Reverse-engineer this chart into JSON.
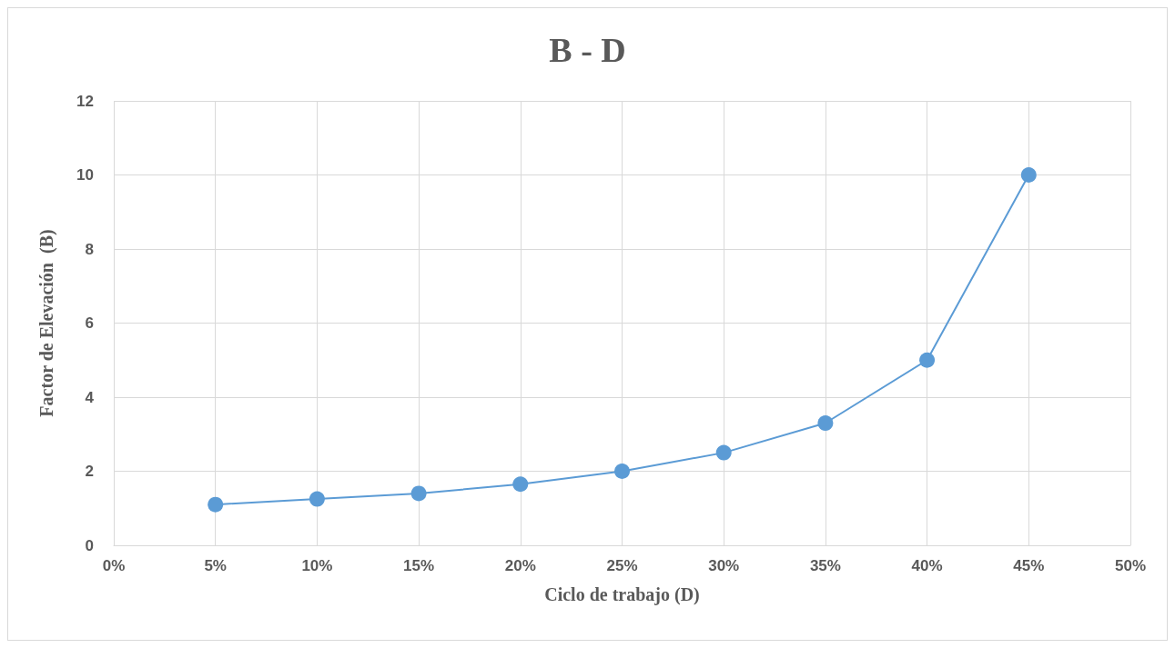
{
  "chart_data": {
    "type": "line",
    "title": "B - D",
    "xlabel": "Ciclo de trabajo (D)",
    "ylabel": "Factor de Elevación  (B)",
    "x": [
      5,
      10,
      15,
      20,
      25,
      30,
      35,
      40,
      45
    ],
    "series": [
      {
        "color": "#5b9bd5",
        "values": [
          1.1,
          1.25,
          1.4,
          1.65,
          2,
          2.5,
          3.3,
          5,
          10
        ]
      }
    ],
    "xlim": [
      0,
      50
    ],
    "xticks": [
      {
        "value": 0,
        "label": "0%"
      },
      {
        "value": 5,
        "label": "5%"
      },
      {
        "value": 10,
        "label": "10%"
      },
      {
        "value": 15,
        "label": "15%"
      },
      {
        "value": 20,
        "label": "20%"
      },
      {
        "value": 25,
        "label": "25%"
      },
      {
        "value": 30,
        "label": "30%"
      },
      {
        "value": 35,
        "label": "35%"
      },
      {
        "value": 40,
        "label": "40%"
      },
      {
        "value": 45,
        "label": "45%"
      },
      {
        "value": 50,
        "label": "50%"
      }
    ],
    "ylim": [
      0,
      12
    ],
    "yticks": [
      0,
      2,
      4,
      6,
      8,
      10,
      12
    ],
    "grid": true,
    "marker": "circle",
    "line_style": "solid"
  }
}
